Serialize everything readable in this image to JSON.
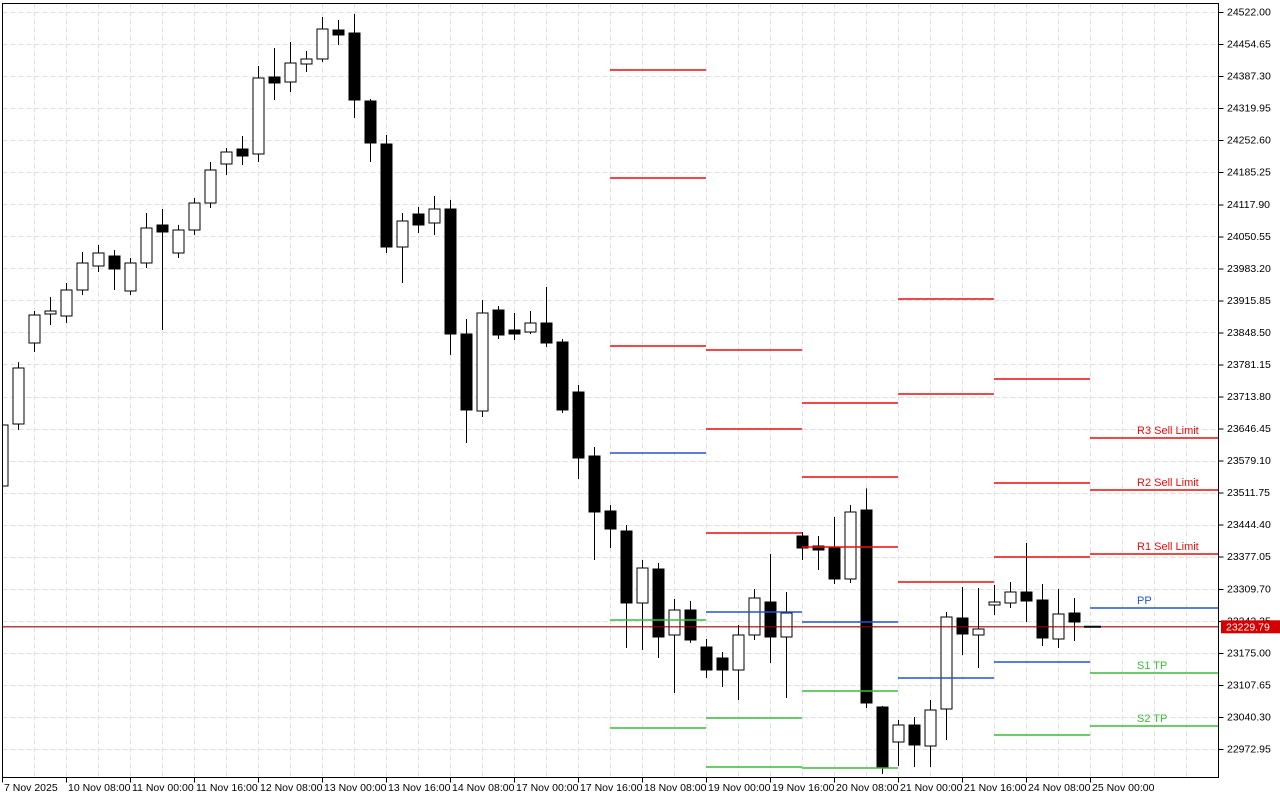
{
  "window": {
    "background": "#FFFFFF"
  },
  "colors": {
    "background": "#FFFFFF",
    "border": "#000000",
    "grid": "#E0E0E0",
    "candle_outline": "#000000",
    "bull_fill": "#FFFFFF",
    "bear_fill": "#000000",
    "resistance": "#EE0C0C",
    "pivot": "#2353D4",
    "support": "#3CBC3C",
    "price_line": "#A00000",
    "price_box_bg": "#D40000",
    "price_box_text": "#FFFFFF",
    "axis_text": "#000000"
  },
  "chart_data": {
    "type": "candlestick",
    "grid": true,
    "legend_position": "none",
    "x_axis": {
      "tick_labels": [
        "7 Nov 2025",
        "10 Nov 08:00",
        "11 Nov 00:00",
        "11 Nov 16:00",
        "12 Nov 08:00",
        "13 Nov 00:00",
        "13 Nov 16:00",
        "14 Nov 08:00",
        "17 Nov 00:00",
        "17 Nov 16:00",
        "18 Nov 08:00",
        "19 Nov 00:00",
        "19 Nov 16:00",
        "20 Nov 08:00",
        "21 Nov 00:00",
        "21 Nov 16:00",
        "24 Nov 08:00",
        "25 Nov 00:00"
      ],
      "candles_per_tick": 4
    },
    "y_axis": {
      "tick_labels": [
        "24522.00",
        "24454.65",
        "24387.30",
        "24319.95",
        "24252.60",
        "24185.25",
        "24117.90",
        "24050.55",
        "23983.20",
        "23915.85",
        "23848.50",
        "23781.15",
        "23713.80",
        "23646.45",
        "23579.10",
        "23511.75",
        "23444.40",
        "23377.05",
        "23309.70",
        "23242.35",
        "23175.00",
        "23107.65",
        "23040.30",
        "22972.95"
      ],
      "max": 24522.0,
      "min": 22972.95,
      "step": 67.35
    },
    "candles": [
      [
        23525.7,
        23664.5,
        23517.3,
        23653.9
      ],
      [
        23656.1,
        23786.4,
        23643.5,
        23773.8
      ],
      [
        23826.3,
        23893.6,
        23807.4,
        23885.2
      ],
      [
        23887.3,
        23923.0,
        23864.1,
        23893.6
      ],
      [
        23883.1,
        23952.4,
        23868.3,
        23937.7
      ],
      [
        23937.7,
        24017.6,
        23927.2,
        23994.4
      ],
      [
        23988.2,
        24032.3,
        23975.6,
        24015.5
      ],
      [
        24009.2,
        24021.8,
        23937.7,
        23981.9
      ],
      [
        23935.6,
        24004.9,
        23927.2,
        23994.4
      ],
      [
        23994.4,
        24099.5,
        23984.0,
        24068.0
      ],
      [
        24074.3,
        24107.9,
        23853.6,
        24059.6
      ],
      [
        24015.5,
        24074.3,
        24004.9,
        24063.8
      ],
      [
        24063.8,
        24131.0,
        24053.3,
        24120.5
      ],
      [
        24120.5,
        24206.7,
        24110.0,
        24189.9
      ],
      [
        24202.5,
        24236.1,
        24179.4,
        24227.7
      ],
      [
        24234.0,
        24261.4,
        24200.4,
        24219.3
      ],
      [
        24223.5,
        24408.5,
        24206.7,
        24383.3
      ],
      [
        24385.4,
        24446.4,
        24337.0,
        24372.8
      ],
      [
        24374.9,
        24458.9,
        24353.8,
        24414.8
      ],
      [
        24412.7,
        24440.0,
        24395.9,
        24423.2
      ],
      [
        24423.2,
        24511.5,
        24416.9,
        24486.3
      ],
      [
        24484.2,
        24505.2,
        24452.6,
        24473.7
      ],
      [
        24477.9,
        24517.8,
        24299.2,
        24337.0
      ],
      [
        24335.0,
        24339.2,
        24206.7,
        24246.7
      ],
      [
        24244.6,
        24263.5,
        24015.5,
        24028.1
      ],
      [
        24028.1,
        24099.5,
        23952.4,
        24082.7
      ],
      [
        24097.4,
        24112.1,
        24057.5,
        24074.3
      ],
      [
        24078.5,
        24135.2,
        24053.3,
        24107.9
      ],
      [
        24107.9,
        24126.8,
        23801.1,
        23845.2
      ],
      [
        23845.2,
        23876.7,
        23616.1,
        23685.5
      ],
      [
        23683.4,
        23916.7,
        23670.8,
        23889.4
      ],
      [
        23895.7,
        23904.1,
        23834.7,
        23843.1
      ],
      [
        23853.6,
        23889.4,
        23832.6,
        23845.2
      ],
      [
        23849.4,
        23893.6,
        23845.2,
        23868.3
      ],
      [
        23868.3,
        23944.0,
        23817.9,
        23826.3
      ],
      [
        23828.4,
        23834.7,
        23679.2,
        23685.5
      ],
      [
        23723.3,
        23738.0,
        23540.5,
        23584.6
      ],
      [
        23588.8,
        23607.7,
        23370.2,
        23471.1
      ],
      [
        23473.2,
        23485.8,
        23395.4,
        23435.4
      ],
      [
        23431.2,
        23443.8,
        23185.3,
        23279.9
      ],
      [
        23279.9,
        23370.2,
        23181.1,
        23353.4
      ],
      [
        23351.3,
        23363.9,
        23164.3,
        23208.4
      ],
      [
        23212.6,
        23288.3,
        23090.7,
        23265.2
      ],
      [
        23265.2,
        23284.1,
        23195.8,
        23202.1
      ],
      [
        23187.4,
        23204.2,
        23122.3,
        23139.1
      ],
      [
        23164.3,
        23176.9,
        23103.4,
        23139.1
      ],
      [
        23139.1,
        23233.6,
        23076.0,
        23212.6
      ],
      [
        23212.6,
        23309.3,
        23202.1,
        23290.4
      ],
      [
        23282.0,
        23382.8,
        23153.8,
        23208.4
      ],
      [
        23208.4,
        23303.0,
        23080.2,
        23258.9
      ],
      [
        23420.7,
        23429.1,
        23370.2,
        23395.4
      ],
      [
        23399.6,
        23420.7,
        23349.2,
        23391.2
      ],
      [
        23397.5,
        23460.6,
        23319.8,
        23330.3
      ],
      [
        23330.3,
        23485.8,
        23321.9,
        23471.1
      ],
      [
        23475.3,
        23521.0,
        23059.2,
        23069.7
      ],
      [
        23061.3,
        23063.4,
        22920.5,
        22933.1
      ],
      [
        22987.7,
        23033.9,
        22937.3,
        23023.4
      ],
      [
        23023.4,
        23040.2,
        22935.2,
        22981.4
      ],
      [
        22979.3,
        23075.9,
        22935.2,
        23054.9
      ],
      [
        23057.0,
        23260.9,
        22991.9,
        23250.4
      ],
      [
        23248.3,
        23313.5,
        23170.6,
        23214.7
      ],
      [
        23212.6,
        23311.4,
        23143.3,
        23225.2
      ],
      [
        23275.7,
        23317.7,
        23254.7,
        23282.0
      ],
      [
        23279.9,
        23324.0,
        23269.4,
        23303.0
      ],
      [
        23303.0,
        23406.0,
        23239.9,
        23284.1
      ],
      [
        23286.2,
        23319.8,
        23189.5,
        23206.3
      ],
      [
        23204.2,
        23309.3,
        23185.3,
        23256.8
      ],
      [
        23258.9,
        23290.4,
        23200.0,
        23239.9
      ]
    ],
    "pivot_days": [
      {
        "day_label": "18 Nov",
        "start": 38,
        "end": 44,
        "levels": [
          {
            "kind": "R",
            "price": 24400.1
          },
          {
            "kind": "R",
            "price": 24173.1
          },
          {
            "kind": "R",
            "price": 23820.0
          },
          {
            "kind": "P",
            "price": 23595.1
          },
          {
            "kind": "S",
            "price": 23244.1
          },
          {
            "kind": "S",
            "price": 23017.1
          }
        ]
      },
      {
        "day_label": "19 Nov",
        "start": 44,
        "end": 50,
        "levels": [
          {
            "kind": "R",
            "price": 23811.6
          },
          {
            "kind": "R",
            "price": 23645.5
          },
          {
            "kind": "R",
            "price": 23426.9
          },
          {
            "kind": "P",
            "price": 23260.9
          },
          {
            "kind": "S",
            "price": 23038.1
          },
          {
            "kind": "S",
            "price": 22935.2
          }
        ]
      },
      {
        "day_label": "20 Nov",
        "start": 50,
        "end": 56,
        "levels": [
          {
            "kind": "R",
            "price": 23700.1
          },
          {
            "kind": "R",
            "price": 23544.7
          },
          {
            "kind": "R",
            "price": 23397.5
          },
          {
            "kind": "P",
            "price": 23239.9
          },
          {
            "kind": "S",
            "price": 23094.9
          },
          {
            "kind": "S",
            "price": 22933.1
          }
        ]
      },
      {
        "day_label": "21 Nov",
        "start": 56,
        "end": 62,
        "levels": [
          {
            "kind": "R",
            "price": 23918.8
          },
          {
            "kind": "R",
            "price": 23719.1
          },
          {
            "kind": "R",
            "price": 23324.0
          },
          {
            "kind": "P",
            "price": 23122.3
          }
        ]
      },
      {
        "day_label": "24 Nov",
        "start": 62,
        "end": 68,
        "levels": [
          {
            "kind": "R",
            "price": 23750.6
          },
          {
            "kind": "R",
            "price": 23532.1
          },
          {
            "kind": "R",
            "price": 23376.5
          },
          {
            "kind": "P",
            "price": 23155.9
          },
          {
            "kind": "S",
            "price": 23002.4
          }
        ]
      },
      {
        "day_label": "25 Nov",
        "start": 68,
        "end": 76,
        "levels": [
          {
            "kind": "R",
            "price": 23626.6,
            "label": "R3 Sell Limit"
          },
          {
            "kind": "R",
            "price": 23517.3,
            "label": "R2 Sell Limit"
          },
          {
            "kind": "R",
            "price": 23382.8,
            "label": "R1 Sell Limit"
          },
          {
            "kind": "P",
            "price": 23269.4,
            "label": "PP"
          },
          {
            "kind": "S",
            "price": 23132.8,
            "label": "S1 TP"
          },
          {
            "kind": "S",
            "price": 23021.3,
            "label": "S2 TP"
          }
        ]
      }
    ],
    "current_price": {
      "value": 23229.79,
      "label": "23229.79"
    }
  }
}
